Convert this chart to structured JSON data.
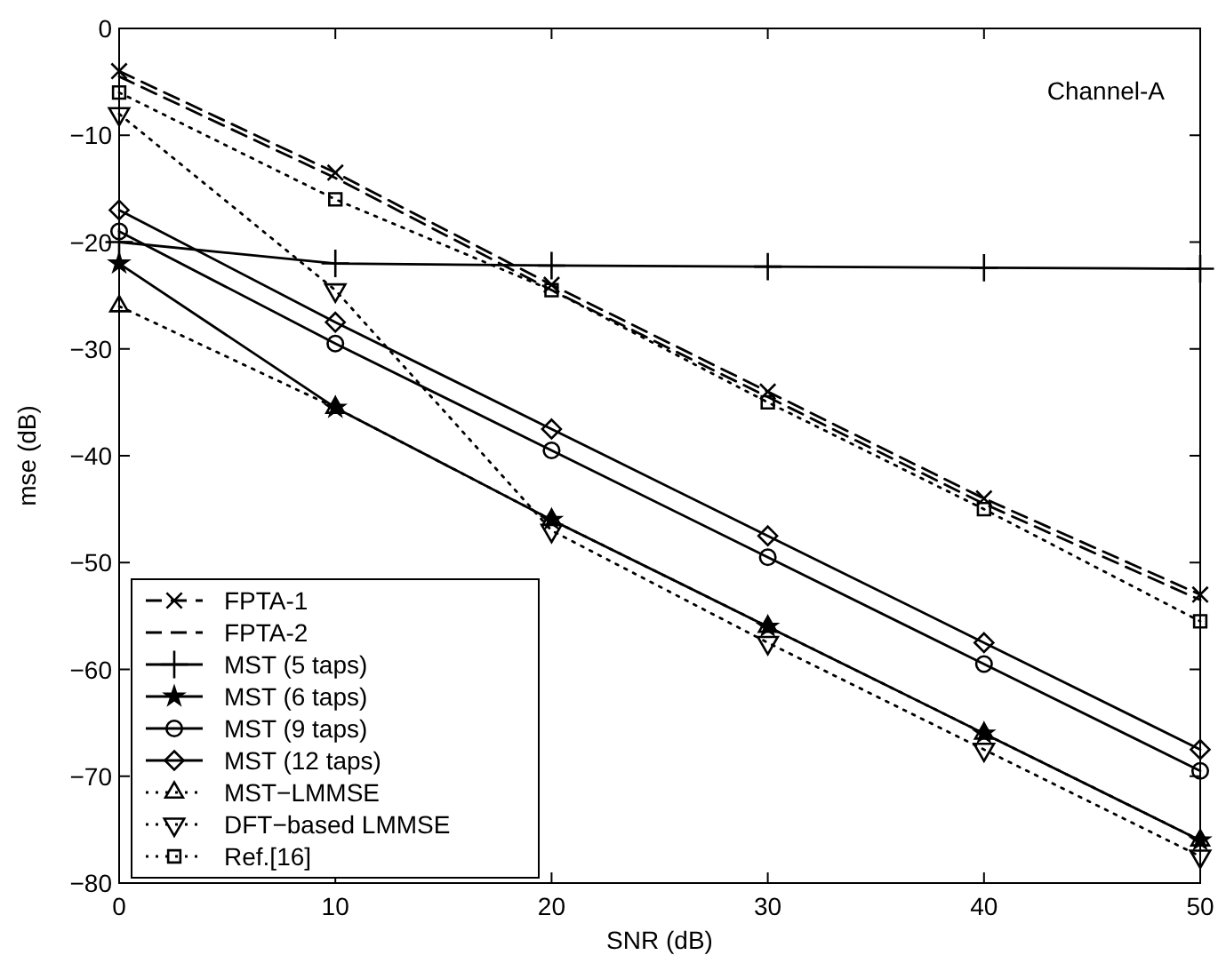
{
  "chart_data": {
    "type": "line",
    "xlabel": "SNR (dB)",
    "ylabel": "mse (dB)",
    "x": [
      0,
      10,
      20,
      30,
      40,
      50
    ],
    "xlim": [
      0,
      50
    ],
    "xticks": [
      0,
      10,
      20,
      30,
      40,
      50
    ],
    "ylim": [
      -80,
      0
    ],
    "yticks": [
      -80,
      -70,
      -60,
      -50,
      -40,
      -30,
      -20,
      -10,
      0
    ],
    "grid": false,
    "legend": "bottom left",
    "annotations": [
      "Channel-A"
    ],
    "series": [
      {
        "name": "FPTA-1",
        "color": "#000000",
        "marker": "cross",
        "line_style": "dashed",
        "values": [
          -4,
          -13.5,
          -24,
          -34,
          -44,
          -53
        ]
      },
      {
        "name": "FPTA-2",
        "color": "#000000",
        "marker": "none",
        "line_style": "dashed",
        "values": [
          -4.5,
          -14,
          -24.5,
          -34.5,
          -44.5,
          -53.5
        ]
      },
      {
        "name": "MST (5 taps)",
        "color": "#000000",
        "marker": "plus",
        "line_style": "solid",
        "values": [
          -20,
          -22,
          -22.2,
          -22.3,
          -22.4,
          -22.5
        ]
      },
      {
        "name": "MST (6 taps)",
        "color": "#000000",
        "marker": "star",
        "line_style": "solid",
        "values": [
          -22,
          -35.5,
          -46,
          -56,
          -66,
          -76
        ]
      },
      {
        "name": "MST (9 taps)",
        "color": "#000000",
        "marker": "circle",
        "line_style": "solid",
        "values": [
          -19,
          -29.5,
          -39.5,
          -49.5,
          -59.5,
          -69.5
        ]
      },
      {
        "name": "MST (12 taps)",
        "color": "#000000",
        "marker": "diamond",
        "line_style": "solid",
        "values": [
          -17,
          -27.5,
          -37.5,
          -47.5,
          -57.5,
          -67.5
        ]
      },
      {
        "name": "MST−LMMSE",
        "color": "#000000",
        "marker": "triangle",
        "line_style": "dotted",
        "values": [
          -26,
          -35.5,
          -46,
          -56,
          -66,
          -76
        ]
      },
      {
        "name": "DFT−based LMMSE",
        "color": "#000000",
        "marker": "triangle-down",
        "line_style": "dotted",
        "values": [
          -8,
          -24.5,
          -47,
          -57.5,
          -67.5,
          -77.5
        ]
      },
      {
        "name": "Ref.[16]",
        "color": "#000000",
        "marker": "square",
        "line_style": "dotted",
        "values": [
          -6,
          -16,
          -24.5,
          -35,
          -45,
          -55.5
        ]
      }
    ]
  }
}
